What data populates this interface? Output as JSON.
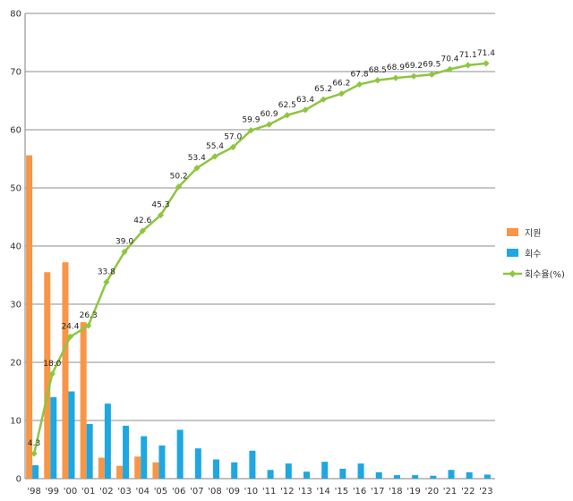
{
  "chart_data": {
    "type": "bar",
    "title": "",
    "xlabel": "",
    "ylabel": "",
    "ylim": [
      0,
      80
    ],
    "yticks": [
      "0",
      "10",
      "20",
      "30",
      "40",
      "50",
      "60",
      "70",
      "80"
    ],
    "grid": true,
    "legend_position": "right",
    "categories": [
      "'98",
      "'99",
      "'00",
      "'01",
      "'02",
      "'03",
      "'04",
      "'05",
      "'06",
      "'07",
      "'08",
      "'09",
      "'10",
      "'11",
      "'12",
      "'13",
      "'14",
      "'15",
      "'16",
      "'17",
      "'18",
      "'19",
      "'20",
      "'21",
      "'22",
      "'23"
    ],
    "series": [
      {
        "name": "지원",
        "kind": "bar",
        "color": "#f79646",
        "values": [
          55.6,
          35.5,
          37.2,
          26.9,
          3.6,
          2.2,
          3.8,
          2.8,
          0,
          0,
          0,
          0,
          0,
          0,
          0,
          0,
          0,
          0,
          0,
          0,
          0,
          0,
          0,
          0,
          0,
          0
        ]
      },
      {
        "name": "회수",
        "kind": "bar",
        "color": "#1ea7e1",
        "values": [
          2.3,
          14.0,
          15.0,
          9.4,
          12.9,
          9.1,
          7.3,
          5.7,
          8.4,
          5.2,
          3.3,
          2.8,
          4.8,
          1.5,
          2.6,
          1.2,
          2.9,
          1.7,
          2.6,
          1.1,
          0.6,
          0.6,
          0.5,
          1.5,
          1.1,
          0.7
        ]
      },
      {
        "name": "회수율(%)",
        "kind": "line",
        "color": "#8dc63f",
        "values": [
          4.3,
          18.0,
          24.4,
          26.3,
          33.8,
          39.0,
          42.6,
          45.3,
          50.2,
          53.4,
          55.4,
          57.0,
          59.9,
          60.9,
          62.5,
          63.4,
          65.2,
          66.2,
          67.8,
          68.5,
          68.9,
          69.2,
          69.5,
          70.4,
          71.1,
          71.4
        ],
        "labels": [
          "4.3",
          "18.0",
          "24.4",
          "26.3",
          "33.8",
          "39.0",
          "42.6",
          "45.3",
          "50.2",
          "53.4",
          "55.4",
          "57.0",
          "59.9",
          "60.9",
          "62.5",
          "63.4",
          "65.2",
          "66.2",
          "67.8",
          "68.5",
          "68.9",
          "69.2",
          "69.5",
          "70.4",
          "71.1",
          "71.4"
        ]
      }
    ]
  }
}
